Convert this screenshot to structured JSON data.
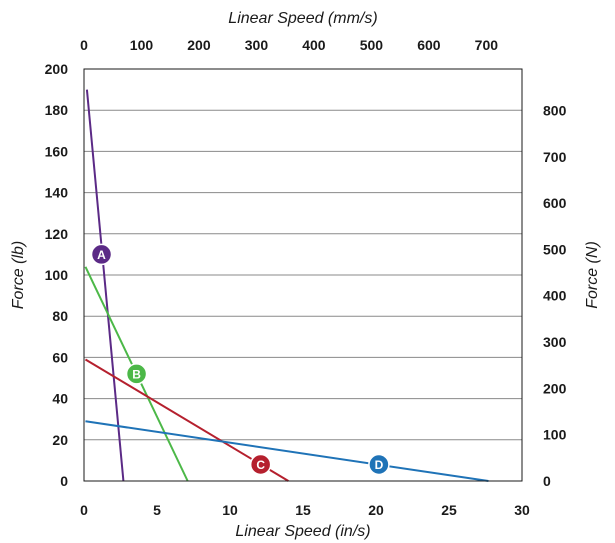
{
  "chart_data": {
    "type": "line",
    "xlabel": "Linear Speed (in/s)",
    "ylabel": "Force (lb)",
    "x2label": "Linear Speed (mm/s)",
    "y2label": "Force (N)",
    "xlim": [
      0,
      30
    ],
    "ylim": [
      0,
      200
    ],
    "x2lim": [
      0,
      762
    ],
    "y2lim": [
      0,
      889.6
    ],
    "x_ticks": [
      0,
      5,
      10,
      15,
      20,
      25,
      30
    ],
    "y_ticks": [
      0,
      20,
      40,
      60,
      80,
      100,
      120,
      140,
      160,
      180,
      200
    ],
    "x2_ticks": [
      0,
      100,
      200,
      300,
      400,
      500,
      600,
      700
    ],
    "y2_ticks": [
      0,
      100,
      200,
      300,
      400,
      500,
      600,
      700,
      800
    ],
    "grid": "horizontal",
    "series": [
      {
        "name": "A",
        "color": "#5b2a86",
        "x": [
          0.2,
          2.7
        ],
        "y": [
          190,
          0
        ],
        "label_at": [
          1.2,
          110
        ]
      },
      {
        "name": "B",
        "color": "#4cb848",
        "x": [
          0.1,
          7.1
        ],
        "y": [
          104,
          0
        ],
        "label_at": [
          3.6,
          52
        ]
      },
      {
        "name": "C",
        "color": "#b5202e",
        "x": [
          0.1,
          14.0
        ],
        "y": [
          59,
          0
        ],
        "label_at": [
          12.1,
          8
        ]
      },
      {
        "name": "D",
        "color": "#1f73b7",
        "x": [
          0.1,
          27.7
        ],
        "y": [
          29,
          0
        ],
        "label_at": [
          20.2,
          8
        ]
      }
    ]
  }
}
